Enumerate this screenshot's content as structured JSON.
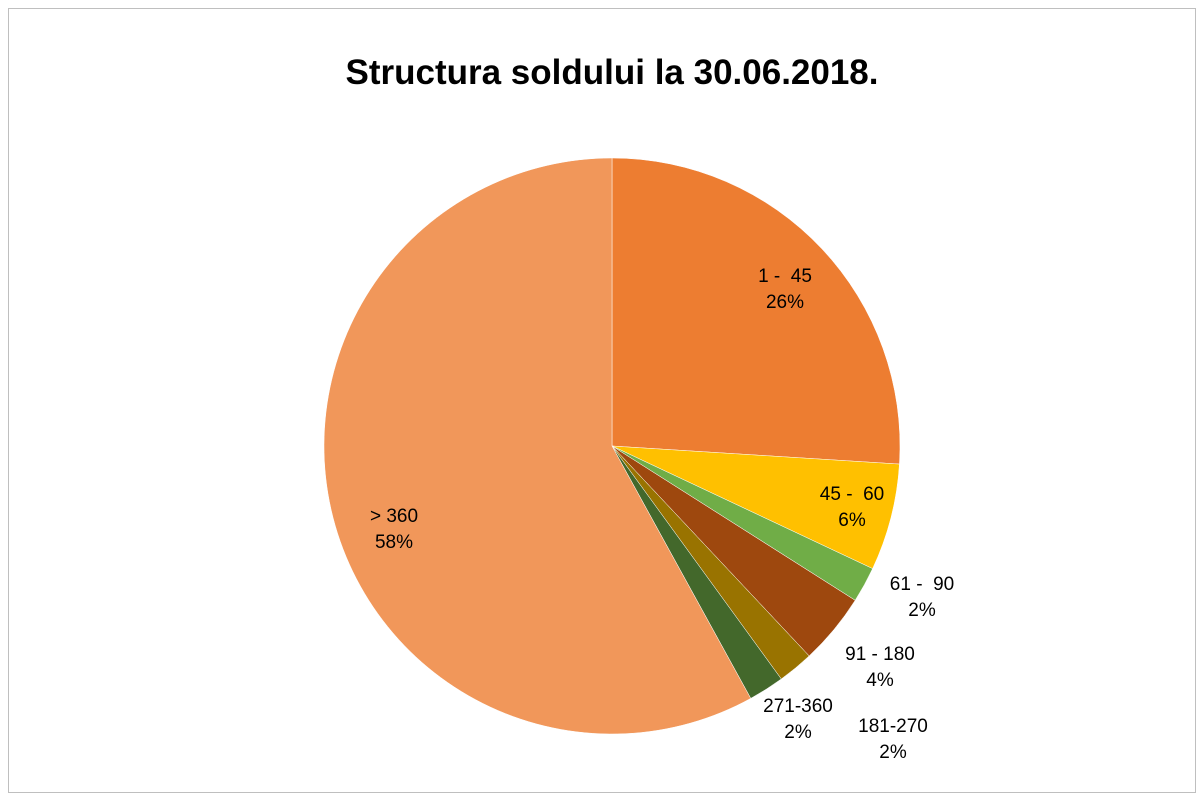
{
  "chart_data": {
    "type": "pie",
    "title": "Structura soldului la 30.06.2018.",
    "categories": [
      "1 -  45",
      "45 -  60",
      "61 -  90",
      "91 - 180",
      "181-270",
      "271-360",
      "> 360"
    ],
    "values": [
      26,
      6,
      2,
      4,
      2,
      2,
      58
    ],
    "value_labels": [
      "26%",
      "6%",
      "2%",
      "4%",
      "2%",
      "2%",
      "58%"
    ],
    "colors": [
      "#ED7D31",
      "#FFC000",
      "#70AD47",
      "#9E480E",
      "#997300",
      "#43682B",
      "#F1975A"
    ]
  }
}
